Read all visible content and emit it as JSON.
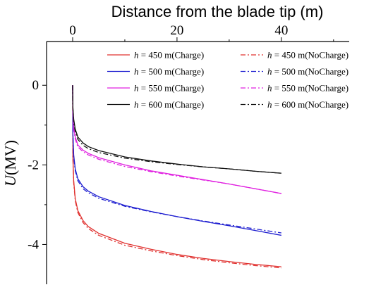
{
  "chart_data": {
    "type": "line",
    "title": "",
    "xlabel": "Distance from the blade tip (m)",
    "ylabel_italic": "U",
    "ylabel_unit": "(MV)",
    "xlim": [
      -5,
      53
    ],
    "ylim": [
      -5.0,
      1.1
    ],
    "x_ticks": [
      0,
      20,
      40
    ],
    "x_tick_labels": [
      "0",
      "20",
      "40"
    ],
    "y_ticks": [
      0,
      -2,
      -4
    ],
    "y_tick_labels": [
      "0",
      "-2",
      "-4"
    ],
    "x_axis_position": "top",
    "grid": false,
    "legend_placement": "top-right",
    "legend": [
      {
        "italic": "h",
        "text": " = 450 m(Charge)",
        "series": 0
      },
      {
        "italic": "h",
        "text": " = 450 m(NoCharge)",
        "series": 1
      },
      {
        "italic": "h",
        "text": " = 500 m(Charge)",
        "series": 2
      },
      {
        "italic": "h",
        "text": " = 500 m(NoCharge)",
        "series": 3
      },
      {
        "italic": "h",
        "text": " = 550 m(Charge)",
        "series": 4
      },
      {
        "italic": "h",
        "text": " = 550 m(NoCharge)",
        "series": 5
      },
      {
        "italic": "h",
        "text": " = 600 m(Charge)",
        "series": 6
      },
      {
        "italic": "h",
        "text": " = 600 m(NoCharge)",
        "series": 7
      }
    ],
    "x": [
      0,
      0.05,
      0.2,
      0.5,
      1,
      2,
      3,
      5,
      10,
      15,
      20,
      25,
      30,
      35,
      40
    ],
    "series": [
      {
        "color": "#e0302e",
        "dash": "solid",
        "values": [
          0,
          -1.8,
          -2.4,
          -2.85,
          -3.15,
          -3.4,
          -3.55,
          -3.72,
          -3.97,
          -4.12,
          -4.25,
          -4.35,
          -4.43,
          -4.5,
          -4.56
        ]
      },
      {
        "color": "#e0302e",
        "dash": "dashdot",
        "values": [
          0,
          -1.85,
          -2.45,
          -2.9,
          -3.2,
          -3.45,
          -3.6,
          -3.77,
          -4.02,
          -4.16,
          -4.28,
          -4.38,
          -4.46,
          -4.53,
          -4.59
        ]
      },
      {
        "color": "#1f1fd0",
        "dash": "solid",
        "values": [
          0,
          -1.2,
          -1.75,
          -2.1,
          -2.35,
          -2.55,
          -2.66,
          -2.8,
          -3.02,
          -3.17,
          -3.3,
          -3.42,
          -3.53,
          -3.65,
          -3.77
        ]
      },
      {
        "color": "#1f1fd0",
        "dash": "dashdot",
        "values": [
          0,
          -1.25,
          -1.8,
          -2.15,
          -2.4,
          -2.6,
          -2.7,
          -2.84,
          -3.04,
          -3.18,
          -3.3,
          -3.41,
          -3.51,
          -3.61,
          -3.71
        ]
      },
      {
        "color": "#e020e0",
        "dash": "solid",
        "values": [
          0,
          -0.7,
          -1.05,
          -1.3,
          -1.5,
          -1.63,
          -1.71,
          -1.82,
          -2.0,
          -2.15,
          -2.26,
          -2.37,
          -2.48,
          -2.6,
          -2.72
        ]
      },
      {
        "color": "#e020e0",
        "dash": "dashdot",
        "values": [
          0,
          -0.75,
          -1.1,
          -1.35,
          -1.55,
          -1.67,
          -1.75,
          -1.86,
          -2.04,
          -2.17,
          -2.28,
          -2.38,
          -2.48,
          -2.6,
          -2.72
        ]
      },
      {
        "color": "#111111",
        "dash": "solid",
        "values": [
          0,
          -0.55,
          -0.85,
          -1.1,
          -1.3,
          -1.45,
          -1.54,
          -1.64,
          -1.8,
          -1.9,
          -1.98,
          -2.05,
          -2.1,
          -2.16,
          -2.21
        ]
      },
      {
        "color": "#111111",
        "dash": "dashdot",
        "values": [
          0,
          -0.6,
          -0.92,
          -1.17,
          -1.36,
          -1.51,
          -1.59,
          -1.69,
          -1.83,
          -1.92,
          -1.99,
          -2.05,
          -2.1,
          -2.16,
          -2.21
        ]
      }
    ]
  }
}
